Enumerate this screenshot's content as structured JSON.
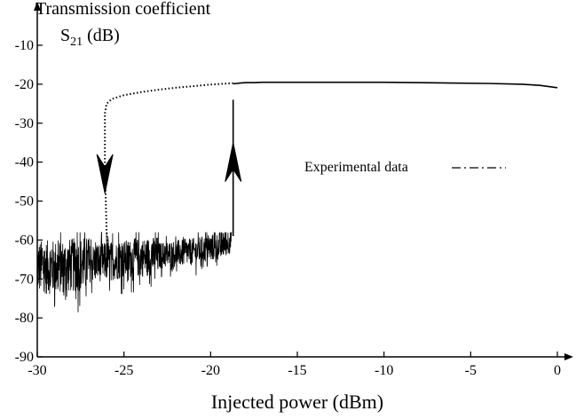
{
  "chart_data": {
    "type": "line",
    "ylabel_line1": "Transmission coefficient",
    "ylabel_s": "S",
    "ylabel_sub": "21",
    "ylabel_unit": " (dB)",
    "xlabel": "Injected power (dBm)",
    "xlim": [
      -30,
      0
    ],
    "ylim": [
      -90,
      -10
    ],
    "xticks": [
      -30,
      -25,
      -20,
      -15,
      -10,
      -5,
      0
    ],
    "yticks": [
      -10,
      -20,
      -30,
      -40,
      -50,
      -60,
      -70,
      -80,
      -90
    ],
    "grid": false,
    "legend": {
      "label": "Experimental data",
      "position": "right"
    },
    "series": [
      {
        "name": "Experimental data",
        "style": "dotted",
        "x": [
          -26.1,
          -26.0,
          -25.7,
          -25.0,
          -24.0,
          -23.0,
          -22.0,
          -21.0,
          -20.0,
          -19.0,
          -18.7
        ],
        "y": [
          -27.5,
          -25.0,
          -23.8,
          -22.8,
          -22.0,
          -21.4,
          -20.9,
          -20.5,
          -20.1,
          -19.8,
          -19.7
        ]
      },
      {
        "name": "",
        "style": "solid",
        "x": [
          -18.7,
          -18.5,
          -18.3,
          -18.0,
          -17.5,
          -17.0,
          -16.0,
          -14.0,
          -12.0,
          -10.0,
          -8.0,
          -6.0,
          -4.0,
          -2.0,
          -1.0,
          0.0
        ],
        "y": [
          -19.9,
          -19.8,
          -19.7,
          -19.6,
          -19.6,
          -19.5,
          -19.5,
          -19.5,
          -19.5,
          -19.5,
          -19.6,
          -19.7,
          -19.8,
          -20.0,
          -20.3,
          -20.9
        ]
      },
      {
        "name": "",
        "style": "dotted",
        "x": [
          -26.1,
          -26.1,
          -26.05,
          -26.0,
          -25.9
        ],
        "y": [
          -28.0,
          -40.0,
          -50.0,
          -58.0,
          -62.0
        ]
      },
      {
        "name": "",
        "style": "solid",
        "x": [
          -18.7,
          -18.7,
          -18.7
        ],
        "y": [
          -59.0,
          -40.0,
          -24.0
        ]
      },
      {
        "name": "",
        "style": "noise",
        "x": [
          -30.0,
          -29.0,
          -28.0,
          -27.0,
          -26.0,
          -25.0,
          -24.0,
          -23.0,
          -22.0,
          -21.0,
          -20.0,
          -19.5,
          -19.0,
          -18.8
        ],
        "y": [
          -67.0,
          -67.0,
          -66.5,
          -66.0,
          -65.5,
          -65.0,
          -64.5,
          -64.0,
          -63.5,
          -63.0,
          -62.0,
          -61.5,
          -60.5,
          -59.5
        ]
      }
    ],
    "arrows": [
      {
        "direction": "down",
        "x": -26.1,
        "y_from": -38.0,
        "y_to": -48.0
      },
      {
        "direction": "up",
        "x": -18.7,
        "y_from": -45.0,
        "y_to": -35.0
      }
    ]
  }
}
